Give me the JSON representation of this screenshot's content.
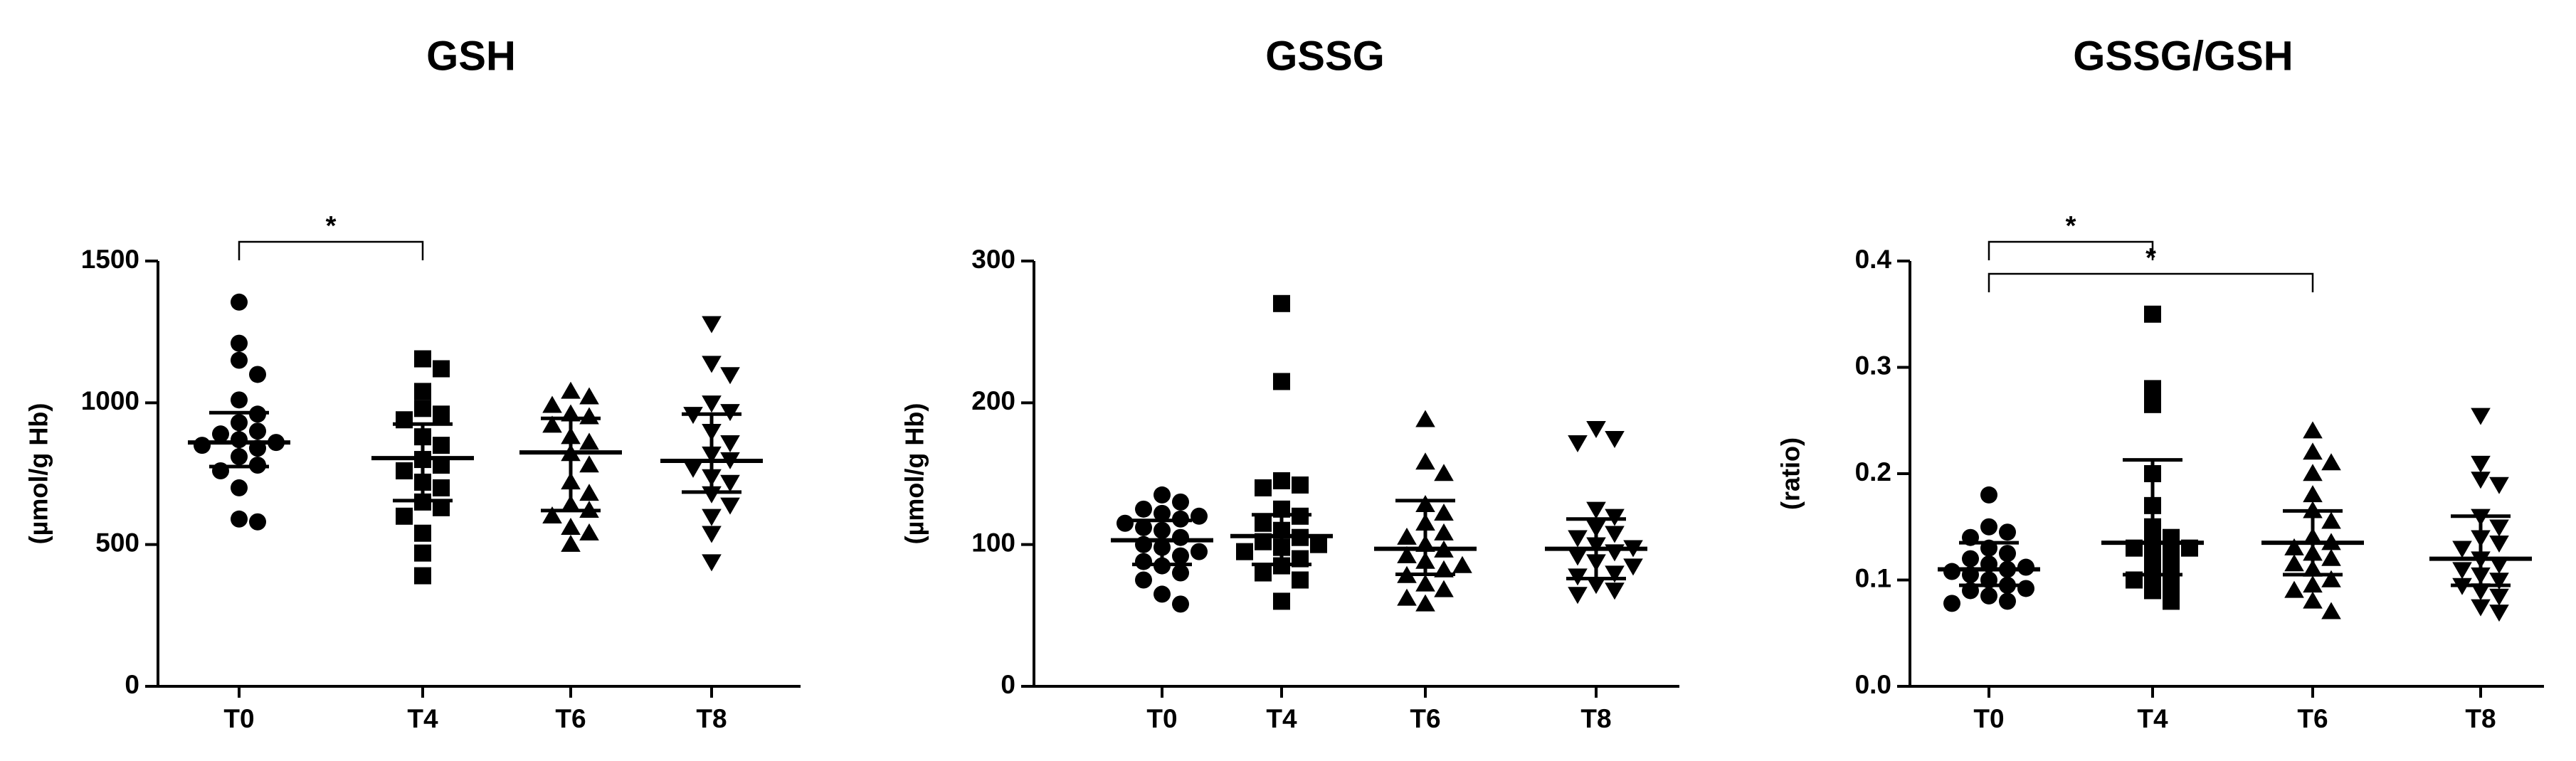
{
  "chart_data": [
    {
      "type": "scatter",
      "title": "GSH",
      "ylabel": "(µmol/g Hb)",
      "ylim": [
        0,
        1500
      ],
      "yticks": [
        "0",
        "500",
        "1000",
        "1500"
      ],
      "categories": [
        "T0",
        "T4",
        "T6",
        "T8"
      ],
      "marker_shapes": [
        "circle",
        "square",
        "triangle-up",
        "triangle-down"
      ],
      "series": [
        {
          "category": "T0",
          "values": [
            1355,
            1210,
            1150,
            1100,
            1010,
            960,
            930,
            900,
            890,
            870,
            860,
            850,
            840,
            810,
            780,
            760,
            700,
            590,
            580
          ],
          "median": 860,
          "iqr": [
            775,
            965
          ]
        },
        {
          "category": "T4",
          "values": [
            1155,
            1120,
            1040,
            980,
            960,
            940,
            880,
            850,
            800,
            780,
            760,
            720,
            700,
            650,
            630,
            600,
            540,
            470,
            390
          ],
          "median": 805,
          "iqr": [
            655,
            925
          ]
        },
        {
          "category": "T6",
          "values": [
            1040,
            1020,
            990,
            960,
            950,
            920,
            880,
            860,
            820,
            780,
            720,
            680,
            640,
            620,
            600,
            560,
            540,
            500
          ],
          "median": 825,
          "iqr": [
            620,
            945
          ]
        },
        {
          "category": "T8",
          "values": [
            1280,
            1140,
            1100,
            1000,
            970,
            960,
            900,
            860,
            820,
            800,
            770,
            740,
            720,
            680,
            640,
            600,
            540,
            440
          ],
          "median": 795,
          "iqr": [
            685,
            960
          ]
        }
      ],
      "significance": [
        {
          "from": "T0",
          "to": "T4",
          "label": "*"
        }
      ]
    },
    {
      "type": "scatter",
      "title": "GSSG",
      "ylabel": "(µmol/g Hb)",
      "ylim": [
        0,
        300
      ],
      "yticks": [
        "0",
        "100",
        "200",
        "300"
      ],
      "categories": [
        "T0",
        "T4",
        "T6",
        "T8"
      ],
      "marker_shapes": [
        "circle",
        "square",
        "triangle-up",
        "triangle-down"
      ],
      "series": [
        {
          "category": "T0",
          "values": [
            135,
            130,
            125,
            122,
            120,
            118,
            115,
            112,
            110,
            105,
            100,
            98,
            95,
            92,
            88,
            85,
            80,
            75,
            65,
            58
          ],
          "median": 103,
          "iqr": [
            86,
            117
          ]
        },
        {
          "category": "T4",
          "values": [
            270,
            215,
            145,
            142,
            140,
            125,
            120,
            115,
            110,
            105,
            102,
            100,
            98,
            95,
            90,
            85,
            80,
            75,
            60
          ],
          "median": 106,
          "iqr": [
            86,
            121
          ]
        },
        {
          "category": "T6",
          "values": [
            188,
            158,
            150,
            128,
            122,
            115,
            108,
            105,
            100,
            96,
            92,
            88,
            85,
            82,
            78,
            72,
            68,
            62,
            58
          ],
          "median": 97,
          "iqr": [
            79,
            131
          ]
        },
        {
          "category": "T8",
          "values": [
            182,
            175,
            172,
            125,
            120,
            112,
            108,
            105,
            100,
            98,
            95,
            92,
            88,
            85,
            80,
            78,
            72,
            68,
            65
          ],
          "median": 97,
          "iqr": [
            76,
            118
          ]
        }
      ],
      "significance": []
    },
    {
      "type": "scatter",
      "title": "GSSG/GSH",
      "ylabel": "(ratio)",
      "ylim": [
        0,
        0.4
      ],
      "yticks": [
        "0.0",
        "0.1",
        "0.2",
        "0.3",
        "0.4"
      ],
      "categories": [
        "T0",
        "T4",
        "T6",
        "T8"
      ],
      "marker_shapes": [
        "circle",
        "square",
        "triangle-up",
        "triangle-down"
      ],
      "series": [
        {
          "category": "T0",
          "values": [
            0.18,
            0.15,
            0.145,
            0.14,
            0.13,
            0.125,
            0.12,
            0.115,
            0.112,
            0.11,
            0.108,
            0.105,
            0.1,
            0.095,
            0.092,
            0.09,
            0.085,
            0.08,
            0.078
          ],
          "median": 0.11,
          "iqr": [
            0.095,
            0.135
          ]
        },
        {
          "category": "T4",
          "values": [
            0.35,
            0.28,
            0.265,
            0.2,
            0.17,
            0.15,
            0.14,
            0.135,
            0.13,
            0.13,
            0.125,
            0.12,
            0.11,
            0.105,
            0.1,
            0.095,
            0.09,
            0.08
          ],
          "median": 0.135,
          "iqr": [
            0.105,
            0.213
          ]
        },
        {
          "category": "T6",
          "values": [
            0.24,
            0.22,
            0.21,
            0.2,
            0.18,
            0.165,
            0.155,
            0.14,
            0.135,
            0.13,
            0.125,
            0.12,
            0.115,
            0.11,
            0.1,
            0.095,
            0.09,
            0.08,
            0.07
          ],
          "median": 0.135,
          "iqr": [
            0.105,
            0.165
          ]
        },
        {
          "category": "T8",
          "values": [
            0.255,
            0.21,
            0.195,
            0.19,
            0.16,
            0.15,
            0.14,
            0.135,
            0.13,
            0.12,
            0.115,
            0.11,
            0.105,
            0.1,
            0.095,
            0.09,
            0.085,
            0.075,
            0.07
          ],
          "median": 0.12,
          "iqr": [
            0.095,
            0.16
          ]
        }
      ],
      "significance": [
        {
          "from": "T0",
          "to": "T4",
          "label": "*"
        },
        {
          "from": "T0",
          "to": "T6",
          "label": "*"
        }
      ]
    }
  ]
}
